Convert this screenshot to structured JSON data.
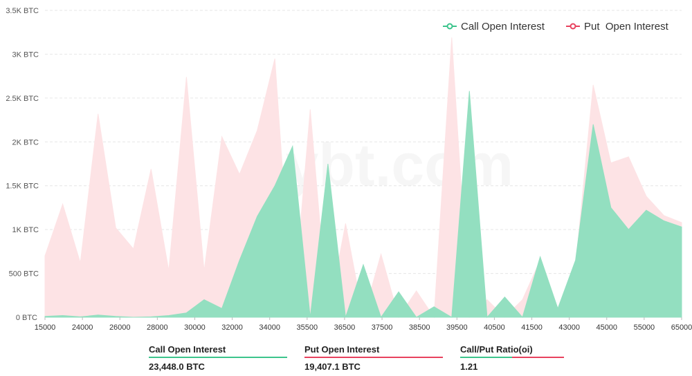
{
  "chart_data": {
    "type": "area",
    "title": "",
    "colors": {
      "call": "#3cc48c",
      "call_fill": "#93dfc0",
      "put": "#e8415e",
      "put_fill": "#fde3e5",
      "grid": "#e6e6e6"
    },
    "y_ticks": [
      "0 BTC",
      "500 BTC",
      "1K BTC",
      "1.5K BTC",
      "2K BTC",
      "2.5K BTC",
      "3K BTC",
      "3.5K BTC"
    ],
    "ylim": [
      0,
      3500
    ],
    "x_ticks": [
      "15000",
      "24000",
      "26000",
      "28000",
      "30000",
      "32000",
      "34000",
      "35500",
      "36500",
      "37500",
      "38500",
      "39500",
      "40500",
      "41500",
      "43000",
      "45000",
      "55000",
      "65000"
    ],
    "x": [
      "15000",
      "22000",
      "24000",
      "25000",
      "26000",
      "27000",
      "28000",
      "29000",
      "29500",
      "30000",
      "31000",
      "32000",
      "33000",
      "34000",
      "34500",
      "35000",
      "35500",
      "36000",
      "36500",
      "37000",
      "37500",
      "38000",
      "38500",
      "39000",
      "39500",
      "40000",
      "40500",
      "41000",
      "41500",
      "42000",
      "43000",
      "44000",
      "45000",
      "50000",
      "55000",
      "60000",
      "65000"
    ],
    "series": [
      {
        "name": "Call Open Interest",
        "values": [
          10,
          20,
          5,
          25,
          10,
          0,
          5,
          20,
          50,
          200,
          100,
          650,
          1150,
          1500,
          1950,
          0,
          1750,
          0,
          600,
          0,
          290,
          0,
          120,
          0,
          2580,
          0,
          230,
          0,
          690,
          100,
          650,
          2200,
          1250,
          1000,
          1220,
          1100,
          1030
        ]
      },
      {
        "name": "Put  Open Interest",
        "values": [
          700,
          1290,
          620,
          2320,
          1020,
          780,
          1690,
          530,
          2740,
          530,
          2060,
          1630,
          2130,
          2950,
          0,
          2370,
          0,
          1070,
          0,
          720,
          0,
          300,
          0,
          3190,
          0,
          200,
          0,
          200,
          650,
          100,
          580,
          2650,
          1760,
          1830,
          1380,
          1160,
          1080
        ]
      }
    ]
  },
  "legend": {
    "call": "Call Open Interest",
    "put": "Put  Open Interest"
  },
  "watermark": "bybt.com",
  "stats": [
    {
      "label": "Call Open Interest",
      "value": "23,448.0 BTC",
      "color": "#3cc48c"
    },
    {
      "label": "Put Open Interest",
      "value": "19,407.1 BTC",
      "color": "#e8415e"
    },
    {
      "label": "Call/Put Ratio(oi)",
      "value": "1.21",
      "color": "#3cc48c"
    }
  ]
}
